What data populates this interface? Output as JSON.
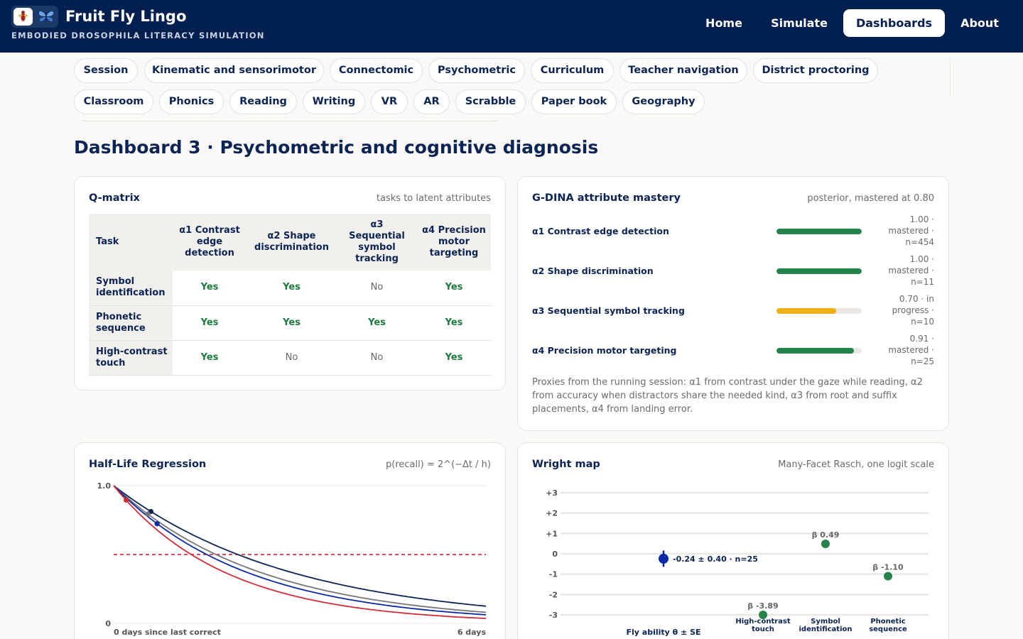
{
  "app": {
    "title": "Fruit Fly Lingo",
    "subtitle": "EMBODIED DROSOPHILA LITERACY SIMULATION",
    "logo_icons": [
      "fly-icon",
      "butterfly-icon"
    ]
  },
  "nav": {
    "items": [
      {
        "label": "Home",
        "active": false
      },
      {
        "label": "Simulate",
        "active": false
      },
      {
        "label": "Dashboards",
        "active": true
      },
      {
        "label": "About",
        "active": false
      }
    ]
  },
  "pills": [
    "Session",
    "Kinematic and sensorimotor",
    "Connectomic",
    "Psychometric",
    "Curriculum",
    "Teacher navigation",
    "District proctoring",
    "Classroom",
    "Phonics",
    "Reading",
    "Writing",
    "VR",
    "AR",
    "Scrabble",
    "Paper book",
    "Geography"
  ],
  "page_title": "Dashboard 3 · Psychometric and cognitive diagnosis",
  "qmatrix": {
    "title": "Q-matrix",
    "subtitle": "tasks to latent attributes",
    "headers": [
      "Task",
      "α1 Contrast edge detection",
      "α2 Shape discrimination",
      "α3 Sequential symbol tracking",
      "α4 Precision motor targeting"
    ],
    "rows": [
      {
        "task": "Symbol identification",
        "cells": [
          "Yes",
          "Yes",
          "No",
          "Yes"
        ]
      },
      {
        "task": "Phonetic sequence",
        "cells": [
          "Yes",
          "Yes",
          "Yes",
          "Yes"
        ]
      },
      {
        "task": "High-contrast touch",
        "cells": [
          "Yes",
          "No",
          "No",
          "Yes"
        ]
      }
    ]
  },
  "gdina": {
    "title": "G-DINA attribute mastery",
    "subtitle": "posterior, mastered at 0.80",
    "attributes": [
      {
        "name": "α1 Contrast edge detection",
        "value": 1.0,
        "stat": "1.00 · mastered · n=454",
        "color": "#23834a"
      },
      {
        "name": "α2 Shape discrimination",
        "value": 1.0,
        "stat": "1.00 · mastered · n=11",
        "color": "#23834a"
      },
      {
        "name": "α3 Sequential symbol tracking",
        "value": 0.7,
        "stat": "0.70 · in progress · n=10",
        "color": "#efaf0e"
      },
      {
        "name": "α4 Precision motor targeting",
        "value": 0.91,
        "stat": "0.91 · mastered · n=25",
        "color": "#23834a"
      }
    ],
    "note": "Proxies from the running session: α1 from contrast under the gaze while reading, α2 from accuracy when distractors share the needed kind, α3 from root and suffix placements, α4 from landing error."
  },
  "hlr": {
    "title": "Half-Life Regression",
    "subtitle": "p(recall) = 2^(−Δt / h)",
    "y_top_label": "1.0",
    "y_bottom_label": "0",
    "x_left_label": "0 days since last correct",
    "x_right_label": "6 days"
  },
  "wright": {
    "title": "Wright map",
    "subtitle": "Many-Facet Rasch, one logit scale",
    "ability_label": "-0.24 ± 0.40 · n=25",
    "ability_axis_label": "Fly ability θ ± SE",
    "task_labels": [
      "High-contrast touch",
      "Symbol identification",
      "Phonetic sequence"
    ],
    "beta_labels": [
      "β -3.89",
      "β 0.49",
      "β -1.10"
    ]
  },
  "chart_data": [
    {
      "type": "line",
      "title": "Half-Life Regression",
      "xlabel": "days since last correct",
      "ylabel": "p(recall)",
      "xlim": [
        0,
        6
      ],
      "ylim": [
        0,
        1.0
      ],
      "threshold": 0.5,
      "series": [
        {
          "color": "#0b2454",
          "half_life": 2.0,
          "marker_x": 0.6
        },
        {
          "color": "#777777",
          "half_life": 1.65,
          "marker_x": 0.55
        },
        {
          "color": "#0a2aa3",
          "half_life": 1.5,
          "marker_x": 0.7
        },
        {
          "color": "#d12c38",
          "half_life": 1.25,
          "marker_x": 0.2
        }
      ]
    },
    {
      "type": "scatter",
      "title": "Wright map",
      "ylim": [
        -3,
        3
      ],
      "yticks": [
        "+3",
        "+2",
        "+1",
        "0",
        "-1",
        "-2",
        "-3"
      ],
      "ability": {
        "theta": -0.24,
        "se": 0.4,
        "n": 25
      },
      "items": [
        {
          "task": "High-contrast touch",
          "beta": -3.89
        },
        {
          "task": "Symbol identification",
          "beta": 0.49
        },
        {
          "task": "Phonetic sequence",
          "beta": -1.1
        }
      ]
    }
  ]
}
